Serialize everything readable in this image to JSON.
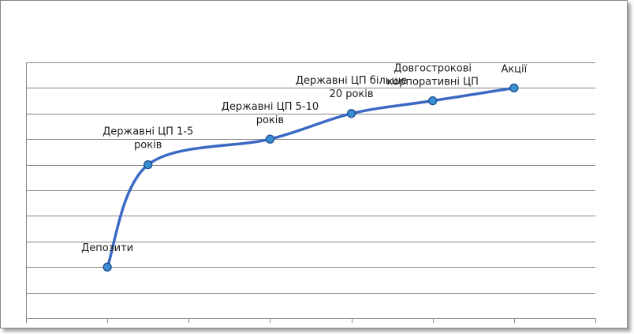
{
  "chart_data": {
    "type": "line",
    "title": "",
    "xlabel": "",
    "ylabel": "",
    "smooth": true,
    "grid": "horizontal",
    "legend": "none",
    "x_ticks": 7,
    "y_range": [
      0,
      10
    ],
    "y_gridlines": 10,
    "series": [
      {
        "color": "#3b69c3",
        "marker_fill": "#3a8fd3",
        "marker_stroke": "#1d4f8f",
        "points": [
          {
            "x": 1.0,
            "y": 2.0,
            "label": [
              "Депозити"
            ]
          },
          {
            "x": 1.5,
            "y": 6.0,
            "label": [
              "Державні ЦП 1-5",
              "років"
            ]
          },
          {
            "x": 3.0,
            "y": 7.0,
            "label": [
              "Державні ЦП 5-10",
              "років"
            ]
          },
          {
            "x": 4.0,
            "y": 8.0,
            "label": [
              "Державні ЦП більше",
              "20 років"
            ]
          },
          {
            "x": 5.0,
            "y": 8.5,
            "label": [
              "Довгострокові",
              "корпоративні ЦП"
            ]
          },
          {
            "x": 6.0,
            "y": 9.0,
            "label": [
              "Акції"
            ]
          }
        ]
      }
    ]
  }
}
